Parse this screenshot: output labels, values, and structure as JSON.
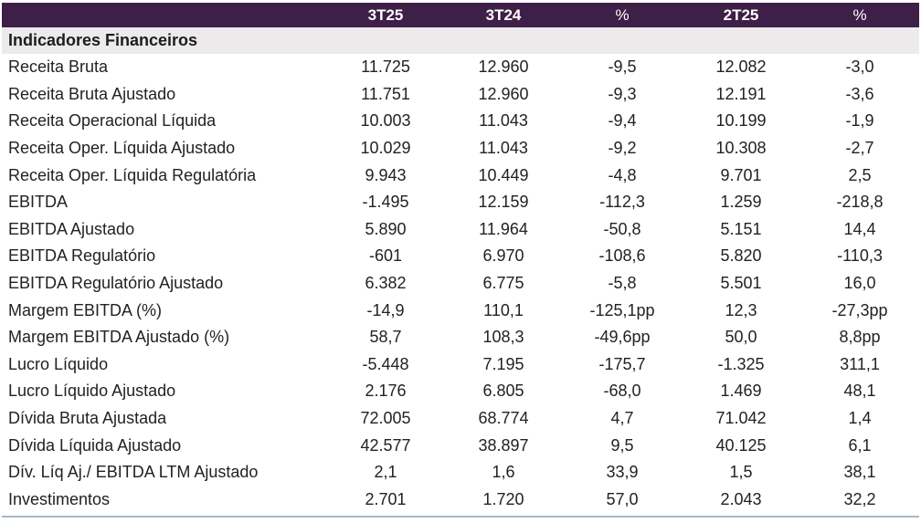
{
  "table": {
    "headers": [
      "",
      "3T25",
      "3T24",
      "%",
      "2T25",
      "%"
    ],
    "section_title": "Indicadores Financeiros",
    "rows": [
      {
        "label": "Receita Bruta",
        "v1": "11.725",
        "v2": "12.960",
        "v3": "-9,5",
        "v4": "12.082",
        "v5": "-3,0"
      },
      {
        "label": "Receita Bruta Ajustado",
        "v1": "11.751",
        "v2": "12.960",
        "v3": "-9,3",
        "v4": "12.191",
        "v5": "-3,6"
      },
      {
        "label": "Receita Operacional Líquida",
        "v1": "10.003",
        "v2": "11.043",
        "v3": "-9,4",
        "v4": "10.199",
        "v5": "-1,9"
      },
      {
        "label": "Receita Oper. Líquida Ajustado",
        "v1": "10.029",
        "v2": "11.043",
        "v3": "-9,2",
        "v4": "10.308",
        "v5": "-2,7"
      },
      {
        "label": "Receita Oper. Líquida Regulatória",
        "v1": "9.943",
        "v2": "10.449",
        "v3": "-4,8",
        "v4": "9.701",
        "v5": "2,5"
      },
      {
        "label": "EBITDA",
        "v1": "-1.495",
        "v2": "12.159",
        "v3": "-112,3",
        "v4": "1.259",
        "v5": "-218,8"
      },
      {
        "label": "EBITDA Ajustado",
        "v1": "5.890",
        "v2": "11.964",
        "v3": "-50,8",
        "v4": "5.151",
        "v5": "14,4"
      },
      {
        "label": "EBITDA Regulatório",
        "v1": "-601",
        "v2": "6.970",
        "v3": "-108,6",
        "v4": "5.820",
        "v5": "-110,3"
      },
      {
        "label": "EBITDA Regulatório Ajustado",
        "v1": "6.382",
        "v2": "6.775",
        "v3": "-5,8",
        "v4": "5.501",
        "v5": "16,0"
      },
      {
        "label": "Margem EBITDA (%)",
        "v1": "-14,9",
        "v2": "110,1",
        "v3": "-125,1pp",
        "v4": "12,3",
        "v5": "-27,3pp"
      },
      {
        "label": "Margem EBITDA Ajustado (%)",
        "v1": "58,7",
        "v2": "108,3",
        "v3": "-49,6pp",
        "v4": "50,0",
        "v5": "8,8pp"
      },
      {
        "label": "Lucro Líquido",
        "v1": "-5.448",
        "v2": "7.195",
        "v3": "-175,7",
        "v4": "-1.325",
        "v5": "311,1"
      },
      {
        "label": "Lucro Líquido Ajustado",
        "v1": "2.176",
        "v2": "6.805",
        "v3": "-68,0",
        "v4": "1.469",
        "v5": "48,1"
      },
      {
        "label": "Dívida Bruta Ajustada",
        "v1": "72.005",
        "v2": "68.774",
        "v3": "4,7",
        "v4": "71.042",
        "v5": "1,4"
      },
      {
        "label": "Dívida Líquida Ajustado",
        "v1": "42.577",
        "v2": "38.897",
        "v3": "9,5",
        "v4": "40.125",
        "v5": "6,1"
      },
      {
        "label": "Dív. Líq Aj./ EBITDA LTM Ajustado",
        "v1": "2,1",
        "v2": "1,6",
        "v3": "33,9",
        "v4": "1,5",
        "v5": "38,1"
      },
      {
        "label": "Investimentos",
        "v1": "2.701",
        "v2": "1.720",
        "v3": "57,0",
        "v4": "2.043",
        "v5": "32,2"
      }
    ]
  },
  "colors": {
    "header_bg": "#3e1f47",
    "section_bg": "#eceaeb",
    "rule": "#a9b8c7"
  }
}
